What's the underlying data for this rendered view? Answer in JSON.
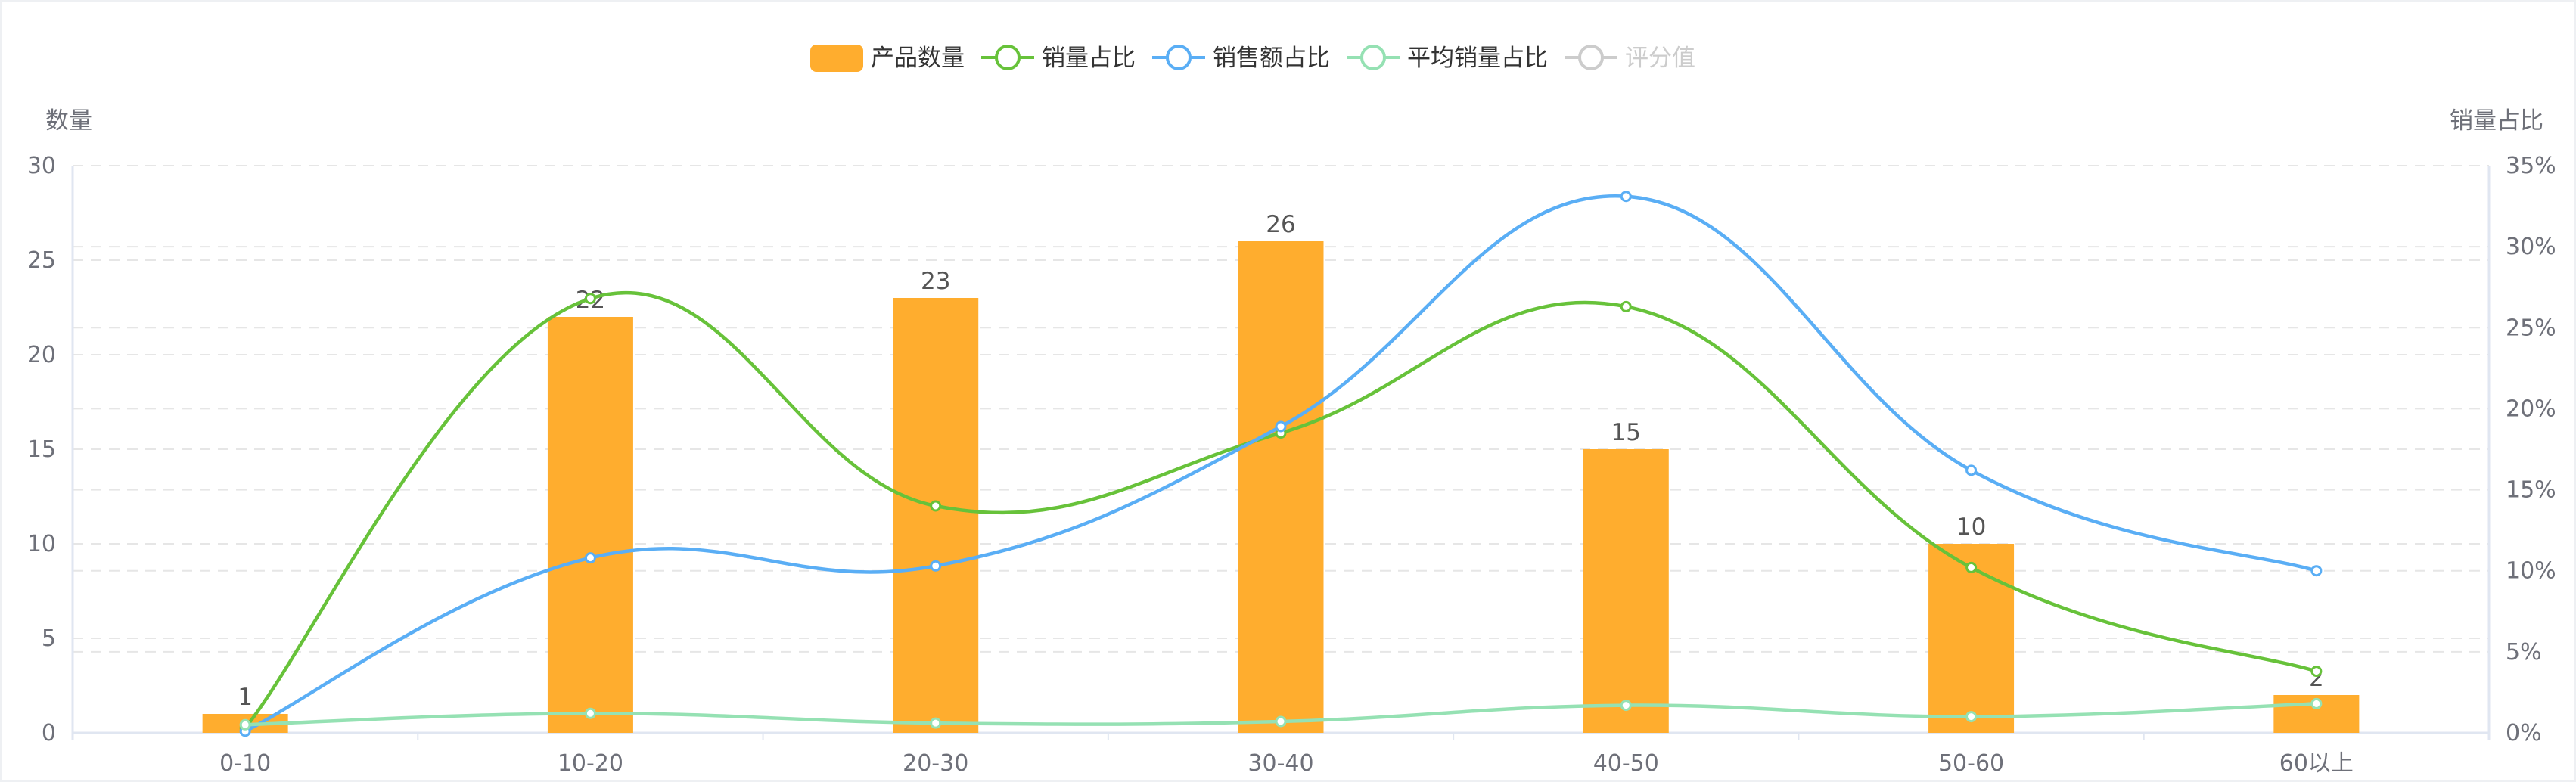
{
  "chart_data": {
    "type": "bar",
    "categories": [
      "0-10",
      "10-20",
      "20-30",
      "30-40",
      "40-50",
      "50-60",
      "60以上"
    ],
    "y_left": {
      "name": "数量",
      "range": [
        0,
        30
      ],
      "ticks": [
        "0",
        "5",
        "10",
        "15",
        "20",
        "25",
        "30"
      ]
    },
    "y_right": {
      "name": "销量占比",
      "range": [
        0,
        35
      ],
      "ticks": [
        "0%",
        "5%",
        "10%",
        "15%",
        "20%",
        "25%",
        "30%",
        "35%"
      ]
    },
    "grid": true,
    "legend_position": "top",
    "legend": [
      {
        "name": "产品数量",
        "color": "#ffad2e",
        "active": true
      },
      {
        "name": "销量占比",
        "color": "#67c23a",
        "active": true
      },
      {
        "name": "销售额占比",
        "color": "#5aaef5",
        "active": true
      },
      {
        "name": "平均销量占比",
        "color": "#95e1b3",
        "active": true
      },
      {
        "name": "评分值",
        "color": "#cccccc",
        "active": false
      }
    ],
    "series": [
      {
        "name": "产品数量",
        "type": "bar",
        "axis": "left",
        "color": "#ffad2e",
        "values": [
          1,
          22,
          23,
          26,
          15,
          10,
          2
        ],
        "labels": [
          "1",
          "22",
          "23",
          "26",
          "15",
          "10",
          "2"
        ]
      },
      {
        "name": "销量占比",
        "type": "line",
        "smooth": true,
        "axis": "right",
        "color": "#67c23a",
        "values": [
          0.3,
          26.8,
          14.0,
          18.5,
          26.3,
          10.2,
          3.8
        ]
      },
      {
        "name": "销售额占比",
        "type": "line",
        "smooth": true,
        "axis": "right",
        "color": "#5aaef5",
        "values": [
          0.1,
          10.8,
          10.3,
          18.9,
          33.1,
          16.2,
          10.0
        ]
      },
      {
        "name": "平均销量占比",
        "type": "line",
        "smooth": true,
        "axis": "right",
        "color": "#95e1b3",
        "values": [
          0.5,
          1.2,
          0.6,
          0.7,
          1.7,
          1.0,
          1.8
        ]
      }
    ]
  }
}
